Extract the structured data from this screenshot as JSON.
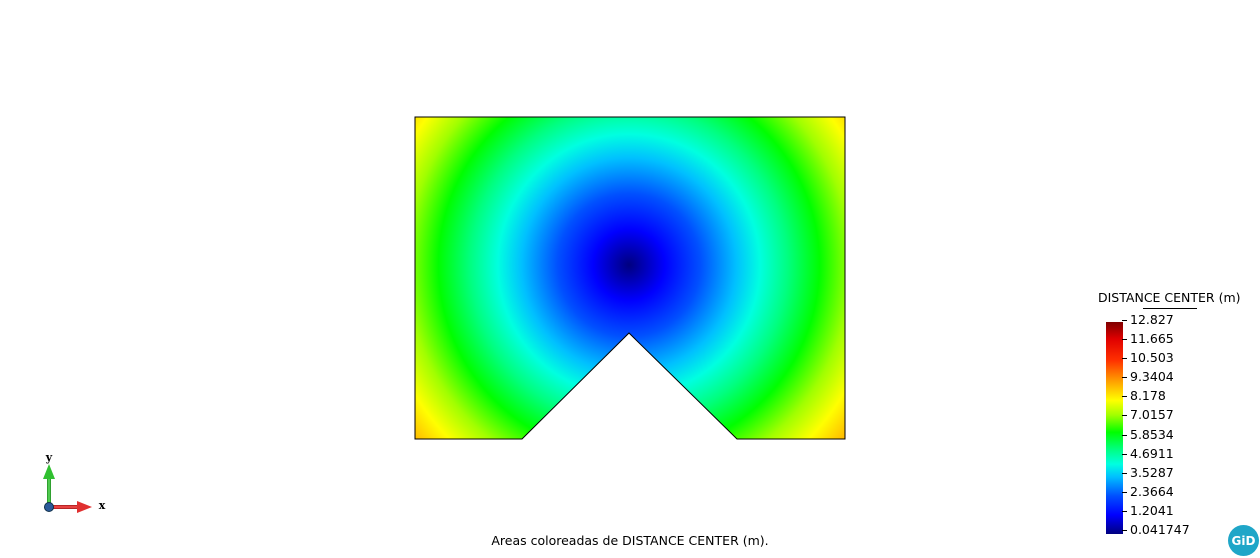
{
  "legend": {
    "title": "DISTANCE CENTER (m)",
    "labels": [
      "12.827",
      "11.665",
      "10.503",
      "9.3404",
      "8.178",
      "7.0157",
      "5.8534",
      "4.6911",
      "3.5287",
      "2.3664",
      "1.2041",
      "0.041747"
    ],
    "min": 0.041747,
    "max": 12.827
  },
  "caption": "Areas coloreadas de DISTANCE CENTER (m).",
  "axes": {
    "x_label": "x",
    "y_label": "y"
  },
  "logo": {
    "text": "GiD"
  },
  "colors": {
    "background": "#ffffff",
    "outline": "#000000",
    "x_axis": "#e03030",
    "y_axis": "#30b030",
    "logo": "#1fa6c8"
  }
}
